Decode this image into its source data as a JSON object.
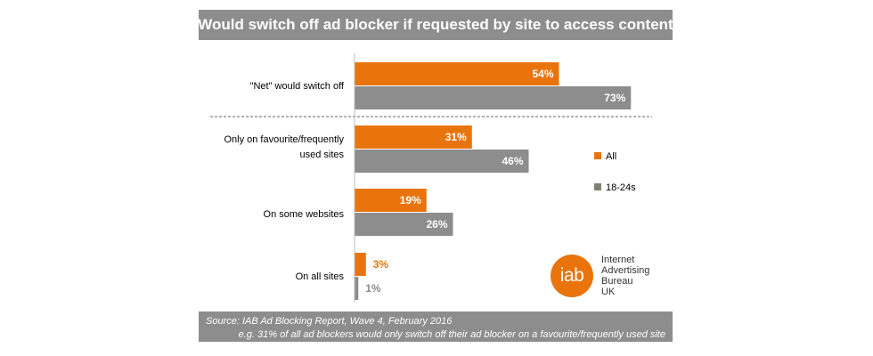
{
  "chart_data": {
    "type": "bar",
    "orientation": "horizontal",
    "title": "Would switch off ad blocker if requested by site to access content",
    "categories": [
      "\"Net\" would switch off",
      "Only on favourite/frequently used sites",
      "On some websites",
      "On all sites"
    ],
    "series": [
      {
        "name": "All",
        "values": [
          54,
          31,
          19,
          3
        ],
        "labels": [
          "54%",
          "31%",
          "19%",
          "3%"
        ],
        "color": "#e9740c"
      },
      {
        "name": "18-24s",
        "values": [
          73,
          46,
          26,
          1
        ],
        "labels": [
          "73%",
          "46%",
          "26%",
          "1%"
        ],
        "color": "#8c8d8c"
      }
    ],
    "xlim": [
      0,
      100
    ],
    "grid": false,
    "legend": "right",
    "separator_after_category": 0
  },
  "footer": {
    "source": "Source: IAB Ad Blocking Report, Wave 4, February 2016",
    "note": "e.g. 31% of all ad blockers would only switch off their ad blocker on a favourite/frequently used site"
  },
  "logo": {
    "mark": "iab",
    "lines": [
      "Internet",
      "Advertising",
      "Bureau",
      "UK"
    ],
    "color": "#e9740c"
  },
  "colors": {
    "orange": "#e9740c",
    "grey": "#8c8d8c",
    "legend_grey": "#7d8270"
  }
}
